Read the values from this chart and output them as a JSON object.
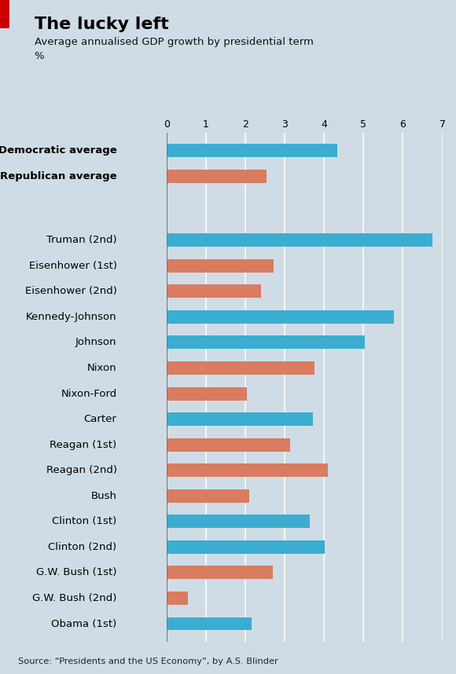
{
  "title": "The lucky left",
  "subtitle1": "Average annualised GDP growth by presidential term",
  "subtitle2": "%",
  "source": "Source: “Presidents and the US Economy”, by A.S. Blinder",
  "background_color": "#cfdce6",
  "bar_color_dem": "#3badd0",
  "bar_color_rep": "#d97c60",
  "xlim": [
    0,
    7
  ],
  "xticks": [
    0,
    1,
    2,
    3,
    4,
    5,
    6,
    7
  ],
  "labels": [
    "Democratic average",
    "Republican average",
    "Truman (2nd)",
    "Eisenhower (1st)",
    "Eisenhower (2nd)",
    "Kennedy-Johnson",
    "Johnson",
    "Nixon",
    "Nixon-Ford",
    "Carter",
    "Reagan (1st)",
    "Reagan (2nd)",
    "Bush",
    "Clinton (1st)",
    "Clinton (2nd)",
    "G.W. Bush (1st)",
    "G.W. Bush (2nd)",
    "Obama (1st)"
  ],
  "values": [
    4.33,
    2.54,
    6.74,
    2.72,
    2.4,
    5.78,
    5.03,
    3.75,
    2.05,
    3.72,
    3.14,
    4.1,
    2.1,
    3.63,
    4.02,
    2.7,
    0.54,
    2.17
  ],
  "party": [
    "dem",
    "rep",
    "dem",
    "rep",
    "rep",
    "dem",
    "dem",
    "rep",
    "rep",
    "dem",
    "rep",
    "rep",
    "rep",
    "dem",
    "dem",
    "rep",
    "rep",
    "dem"
  ],
  "bold_labels": [
    true,
    true,
    false,
    false,
    false,
    false,
    false,
    false,
    false,
    false,
    false,
    false,
    false,
    false,
    false,
    false,
    false,
    false
  ]
}
